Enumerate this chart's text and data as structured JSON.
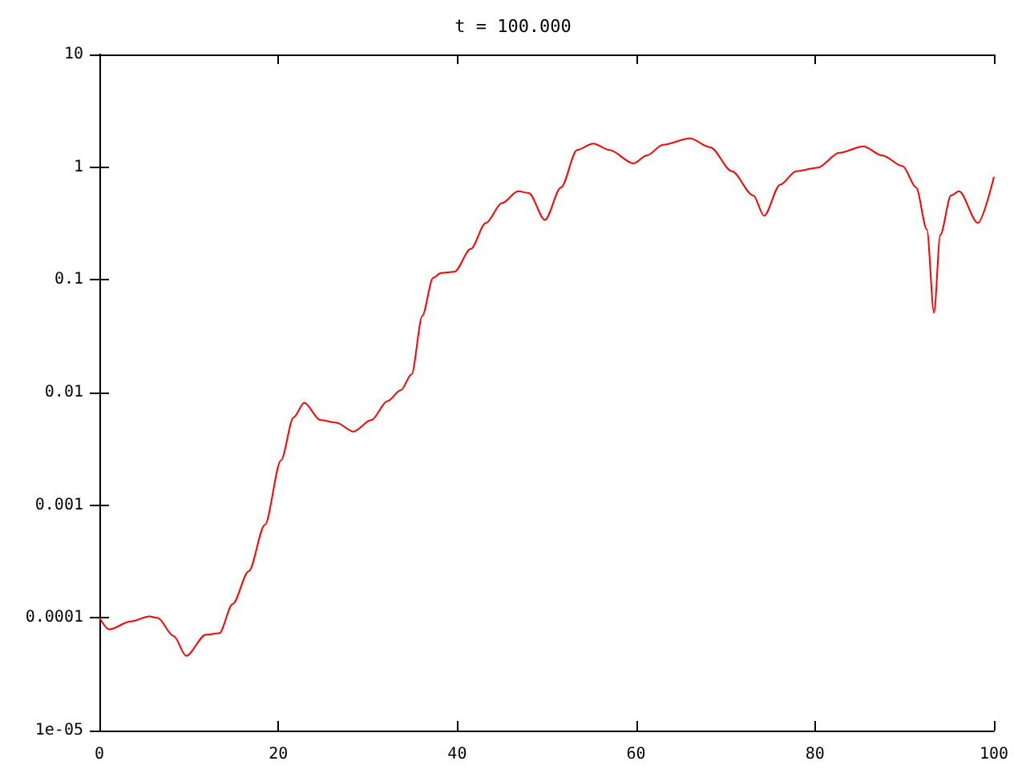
{
  "chart_data": {
    "type": "line",
    "title": "t = 100.000",
    "log": "y",
    "marker": "none",
    "line_style": "solid",
    "xlim": [
      0,
      100
    ],
    "xticks": [
      0,
      20,
      40,
      60,
      80,
      100
    ],
    "ylim": [
      1e-05,
      10
    ],
    "yticks": [
      {
        "value": 1e-05,
        "label": "1e-05"
      },
      0.0001,
      0.001,
      0.01,
      0.1,
      1,
      10
    ],
    "series": [
      {
        "color": "#ff0000",
        "x": [
          0,
          1.1,
          3.5,
          5.6,
          6.5,
          8.3,
          9.7,
          11.9,
          13.4,
          14.9,
          16.7,
          18.5,
          20.3,
          21.7,
          22.9,
          24.7,
          26.5,
          28.4,
          30.4,
          32.2,
          33.7,
          34.9,
          36.1,
          37.3,
          38.2,
          39.7,
          41.5,
          43.2,
          45,
          46.8,
          48,
          49.8,
          51.6,
          53.4,
          55.2,
          57,
          59.7,
          61.2,
          63,
          66,
          68.3,
          70.7,
          73.1,
          74.3,
          76.1,
          77.9,
          80.3,
          82.7,
          85.4,
          87.5,
          89.8,
          91.3,
          92.5,
          93.3,
          94,
          95.2,
          96.1,
          98.2,
          100
        ],
        "values": [
          0.0001,
          7.9e-05,
          9.3e-05,
          0.000103,
          0.0001,
          6.9e-05,
          4.6e-05,
          7.1e-05,
          7.3e-05,
          0.000133,
          0.00026,
          0.00067,
          0.0025,
          0.006,
          0.0081,
          0.0057,
          0.0054,
          0.0045,
          0.0057,
          0.0084,
          0.0105,
          0.0145,
          0.048,
          0.104,
          0.115,
          0.118,
          0.188,
          0.32,
          0.48,
          0.61,
          0.59,
          0.34,
          0.66,
          1.42,
          1.62,
          1.42,
          1.08,
          1.27,
          1.58,
          1.8,
          1.5,
          0.92,
          0.56,
          0.37,
          0.7,
          0.92,
          0.99,
          1.34,
          1.53,
          1.27,
          1.02,
          0.66,
          0.28,
          0.051,
          0.25,
          0.56,
          0.61,
          0.32,
          0.82
        ]
      }
    ]
  }
}
